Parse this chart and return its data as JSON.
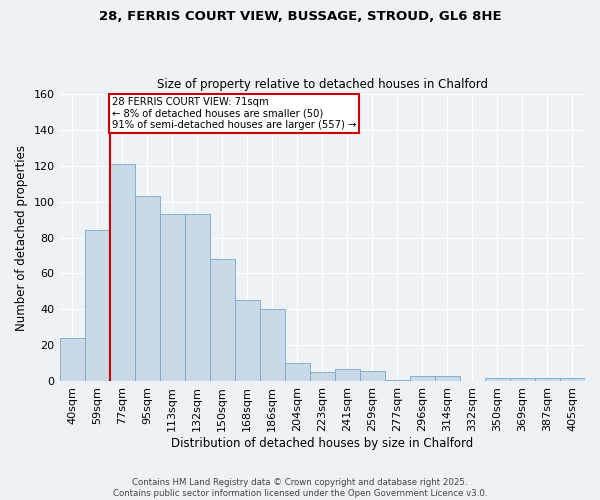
{
  "title1": "28, FERRIS COURT VIEW, BUSSAGE, STROUD, GL6 8HE",
  "title2": "Size of property relative to detached houses in Chalford",
  "xlabel": "Distribution of detached houses by size in Chalford",
  "ylabel": "Number of detached properties",
  "bins": [
    "40sqm",
    "59sqm",
    "77sqm",
    "95sqm",
    "113sqm",
    "132sqm",
    "150sqm",
    "168sqm",
    "186sqm",
    "204sqm",
    "223sqm",
    "241sqm",
    "259sqm",
    "277sqm",
    "296sqm",
    "314sqm",
    "332sqm",
    "350sqm",
    "369sqm",
    "387sqm",
    "405sqm"
  ],
  "values": [
    24,
    84,
    121,
    103,
    93,
    93,
    68,
    45,
    40,
    10,
    5,
    7,
    6,
    1,
    3,
    3,
    0,
    2,
    2,
    2,
    2
  ],
  "bar_color": "#c9d9e8",
  "bar_edge_color": "#7ba7c4",
  "vline_color": "#cc0000",
  "vline_index": 1.5,
  "annotation_lines": [
    "28 FERRIS COURT VIEW: 71sqm",
    "← 8% of detached houses are smaller (50)",
    "91% of semi-detached houses are larger (557) →"
  ],
  "annotation_box_color": "#cc0000",
  "ylim": [
    0,
    160
  ],
  "yticks": [
    0,
    20,
    40,
    60,
    80,
    100,
    120,
    140,
    160
  ],
  "footer1": "Contains HM Land Registry data © Crown copyright and database right 2025.",
  "footer2": "Contains public sector information licensed under the Open Government Licence v3.0.",
  "bg_color": "#edf2f7",
  "plot_bg_color": "#edf2f7",
  "grid_color": "#ffffff"
}
